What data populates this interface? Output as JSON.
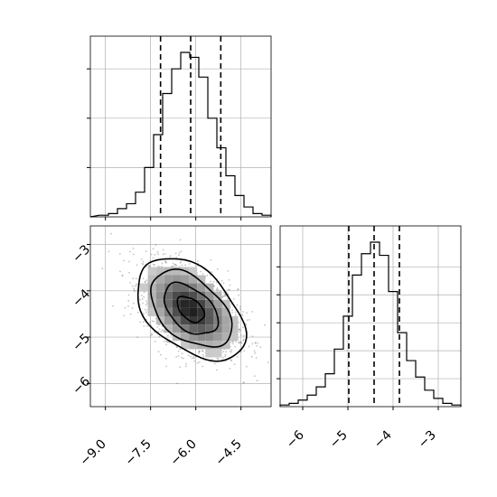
{
  "chart_data": {
    "type": "corner",
    "title": "",
    "grid": true,
    "parameters": [
      "",
      ""
    ],
    "panels": [
      {
        "id": "hist-param1",
        "type": "histogram",
        "xlim": [
          -9.5,
          -3.5
        ],
        "ylim": [
          0,
          1.0
        ],
        "bins": [
          {
            "x0": -9.2,
            "x1": -8.9,
            "count": 0.01
          },
          {
            "x0": -8.9,
            "x1": -8.6,
            "count": 0.02
          },
          {
            "x0": -8.6,
            "x1": -8.3,
            "count": 0.05
          },
          {
            "x0": -8.3,
            "x1": -8.0,
            "count": 0.08
          },
          {
            "x0": -8.0,
            "x1": -7.7,
            "count": 0.15
          },
          {
            "x0": -7.7,
            "x1": -7.4,
            "count": 0.3
          },
          {
            "x0": -7.4,
            "x1": -7.1,
            "count": 0.5
          },
          {
            "x0": -7.1,
            "x1": -6.8,
            "count": 0.75
          },
          {
            "x0": -6.8,
            "x1": -6.5,
            "count": 0.9
          },
          {
            "x0": -6.5,
            "x1": -6.2,
            "count": 1.0
          },
          {
            "x0": -6.2,
            "x1": -5.9,
            "count": 0.97
          },
          {
            "x0": -5.9,
            "x1": -5.6,
            "count": 0.85
          },
          {
            "x0": -5.6,
            "x1": -5.3,
            "count": 0.6
          },
          {
            "x0": -5.3,
            "x1": -5.0,
            "count": 0.42
          },
          {
            "x0": -5.0,
            "x1": -4.7,
            "count": 0.25
          },
          {
            "x0": -4.7,
            "x1": -4.4,
            "count": 0.13
          },
          {
            "x0": -4.4,
            "x1": -4.1,
            "count": 0.06
          },
          {
            "x0": -4.1,
            "x1": -3.8,
            "count": 0.02
          },
          {
            "x0": -3.8,
            "x1": -3.5,
            "count": 0.01
          }
        ],
        "quantiles": [
          -7.17,
          -6.17,
          -5.17
        ]
      },
      {
        "id": "hist-param2",
        "type": "histogram",
        "xlim": [
          -6.5,
          -2.5
        ],
        "ylim": [
          0,
          1.0
        ],
        "bins": [
          {
            "x0": -6.5,
            "x1": -6.3,
            "count": 0.01
          },
          {
            "x0": -6.3,
            "x1": -6.1,
            "count": 0.02
          },
          {
            "x0": -6.1,
            "x1": -5.9,
            "count": 0.04
          },
          {
            "x0": -5.9,
            "x1": -5.7,
            "count": 0.07
          },
          {
            "x0": -5.7,
            "x1": -5.5,
            "count": 0.12
          },
          {
            "x0": -5.5,
            "x1": -5.3,
            "count": 0.2
          },
          {
            "x0": -5.3,
            "x1": -5.1,
            "count": 0.35
          },
          {
            "x0": -5.1,
            "x1": -4.9,
            "count": 0.55
          },
          {
            "x0": -4.9,
            "x1": -4.7,
            "count": 0.8
          },
          {
            "x0": -4.7,
            "x1": -4.5,
            "count": 0.93
          },
          {
            "x0": -4.5,
            "x1": -4.3,
            "count": 1.0
          },
          {
            "x0": -4.3,
            "x1": -4.1,
            "count": 0.92
          },
          {
            "x0": -4.1,
            "x1": -3.9,
            "count": 0.7
          },
          {
            "x0": -3.9,
            "x1": -3.7,
            "count": 0.45
          },
          {
            "x0": -3.7,
            "x1": -3.5,
            "count": 0.28
          },
          {
            "x0": -3.5,
            "x1": -3.3,
            "count": 0.18
          },
          {
            "x0": -3.3,
            "x1": -3.1,
            "count": 0.1
          },
          {
            "x0": -3.1,
            "x1": -2.9,
            "count": 0.05
          },
          {
            "x0": -2.9,
            "x1": -2.7,
            "count": 0.02
          },
          {
            "x0": -2.7,
            "x1": -2.5,
            "count": 0.01
          }
        ],
        "quantiles": [
          -4.98,
          -4.42,
          -3.86
        ]
      },
      {
        "id": "joint",
        "type": "2d-density",
        "xlim": [
          -9.5,
          -3.5
        ],
        "ylim": [
          -2.6,
          -6.5
        ],
        "center": [
          -6.17,
          -4.4
        ],
        "sigma": [
          0.78,
          0.48
        ],
        "correlation": -0.45,
        "contour_levels_sigma": [
          0.5,
          1.0,
          1.5,
          2.0
        ]
      }
    ],
    "ticks": {
      "hist-param1-x": [
        "−9.0",
        "−7.5",
        "−6.0",
        "−4.5"
      ],
      "joint-x": [
        "−9.0",
        "−7.5",
        "−6.0",
        "−4.5"
      ],
      "joint-y": [
        "−3",
        "−4",
        "−5",
        "−6"
      ],
      "hist-param2-x": [
        "−6",
        "−5",
        "−4",
        "−3"
      ]
    },
    "tick_values": {
      "param1": [
        -9.0,
        -7.5,
        -6.0,
        -4.5
      ],
      "param2": [
        -3,
        -4,
        -5,
        -6
      ],
      "param2_hist": [
        -6,
        -5,
        -4,
        -3
      ]
    }
  },
  "colors": {
    "line": "#000000",
    "grid": "#b0b0b0",
    "points": "#555555",
    "density_dark": "#000000",
    "density_light": "#d9d9d9"
  }
}
